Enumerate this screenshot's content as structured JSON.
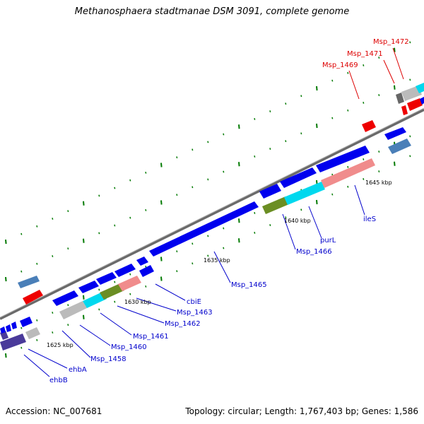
{
  "title": "Methanosphaera stadtmanae DSM 3091, complete genome",
  "footer": {
    "accession": "Accession: NC_007681",
    "topology": "Topology: circular; Length: 1,767,403 bp; Genes: 1,586"
  },
  "colors": {
    "backbone": "#888888",
    "tick": "#007a00",
    "label_blue": "#0000cc",
    "label_red": "#dd0000",
    "gene_blue": "#0000ee",
    "rrna_red": "#ee0000",
    "steel_blue": "#4a7fb8",
    "cyan": "#00d8ee",
    "pink": "#f08c8c",
    "olive": "#6b8e23",
    "gray": "#bbbbbb",
    "navy": "#4a3a9a"
  },
  "scale_labels": [
    "1625 kbp",
    "1630 kbp",
    "1635 kbp",
    "1640 kbp",
    "1645 kbp"
  ],
  "gene_labels": [
    {
      "text": "ehbB",
      "color": "blue"
    },
    {
      "text": "ehbA",
      "color": "blue"
    },
    {
      "text": "Msp_1458",
      "color": "blue"
    },
    {
      "text": "Msp_1460",
      "color": "blue"
    },
    {
      "text": "Msp_1461",
      "color": "blue"
    },
    {
      "text": "Msp_1462",
      "color": "blue"
    },
    {
      "text": "Msp_1463",
      "color": "blue"
    },
    {
      "text": "cbiE",
      "color": "blue"
    },
    {
      "text": "Msp_1465",
      "color": "blue"
    },
    {
      "text": "Msp_1466",
      "color": "blue"
    },
    {
      "text": "purL",
      "color": "blue"
    },
    {
      "text": "ileS",
      "color": "blue"
    },
    {
      "text": "Msp_1469",
      "color": "red"
    },
    {
      "text": "Msp_1471",
      "color": "red"
    },
    {
      "text": "Msp_1472",
      "color": "red"
    }
  ]
}
